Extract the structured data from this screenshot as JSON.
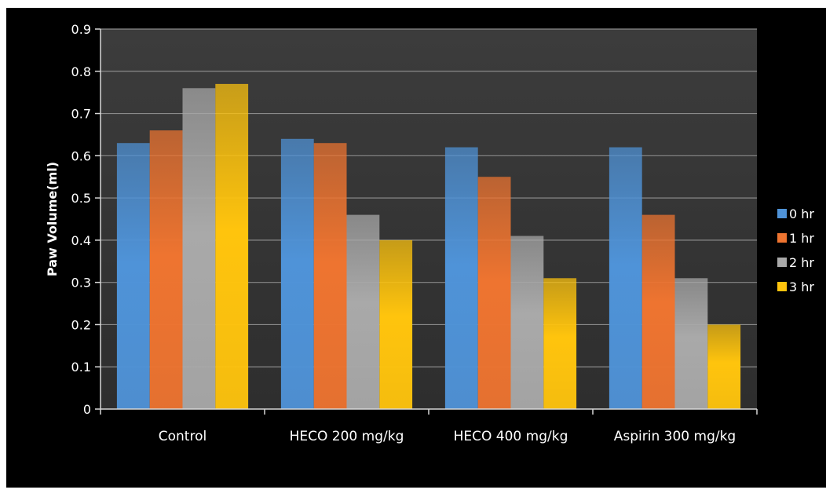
{
  "chart_data": {
    "type": "bar",
    "title": "",
    "xlabel": "",
    "ylabel": "Paw Volume(ml)",
    "ylim": [
      0,
      0.9
    ],
    "yticks": [
      "0",
      "0.1",
      "0.2",
      "0.3",
      "0.4",
      "0.5",
      "0.6",
      "0.7",
      "0.8",
      "0.9"
    ],
    "grid": true,
    "legend_position": "right",
    "categories": [
      "Control",
      "HECO 200 mg/kg",
      "HECO 400 mg/kg",
      "Aspirin 300 mg/kg"
    ],
    "series": [
      {
        "name": "0 hr",
        "color": "#4f93d8",
        "values": [
          0.63,
          0.64,
          0.62,
          0.62
        ]
      },
      {
        "name": "1 hr",
        "color": "#ee7430",
        "values": [
          0.66,
          0.63,
          0.55,
          0.46
        ]
      },
      {
        "name": "2 hr",
        "color": "#a9a9a9",
        "values": [
          0.76,
          0.46,
          0.41,
          0.31
        ]
      },
      {
        "name": "3 hr",
        "color": "#ffc40d",
        "values": [
          0.77,
          0.4,
          0.31,
          0.2
        ]
      }
    ]
  }
}
